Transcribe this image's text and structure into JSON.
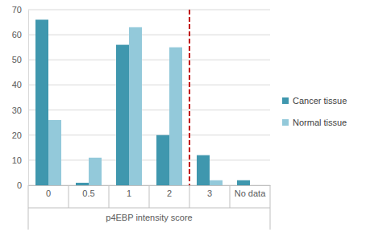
{
  "chart_data": {
    "type": "bar",
    "x_label": "p4EBP intensity score",
    "categories": [
      "0",
      "0.5",
      "1",
      "2",
      "3",
      "No data"
    ],
    "series": [
      {
        "name": "Cancer tissue",
        "color": "#3f97ae",
        "values": [
          66,
          1,
          56,
          20,
          12,
          2
        ]
      },
      {
        "name": "Normal tissue",
        "color": "#93c9da",
        "values": [
          26,
          11,
          63,
          55,
          2,
          0
        ]
      }
    ],
    "ylim": [
      0,
      70
    ],
    "yticks": [
      0,
      10,
      20,
      30,
      40,
      50,
      60,
      70
    ],
    "grid": true,
    "legend": "right"
  }
}
